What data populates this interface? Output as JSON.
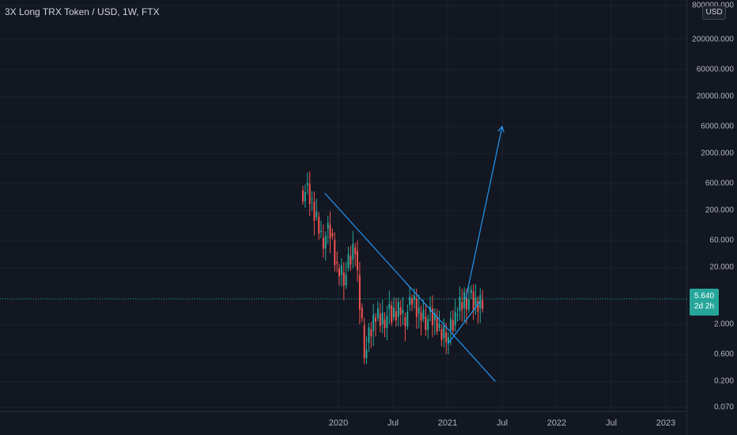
{
  "header": {
    "title": "3X Long TRX Token / USD, 1W, FTX"
  },
  "currency_button": "USD",
  "current_price": {
    "value": "5.640",
    "countdown": "2d 2h",
    "color": "#26a69a"
  },
  "colors": {
    "background": "#131722",
    "up": "#26a69a",
    "down": "#ef5350",
    "drawing": "#2196f3",
    "grid": "#1e222d"
  },
  "price_axis": {
    "labels": [
      "800000.000",
      "200000.000",
      "60000.000",
      "20000.000",
      "6000.000",
      "2000.000",
      "600.000",
      "200.000",
      "60.000",
      "20.000",
      "2.000",
      "0.600",
      "0.200",
      "0.070"
    ]
  },
  "time_axis": {
    "labels": [
      "2020",
      "Jul",
      "2021",
      "Jul",
      "2022",
      "Jul",
      "2023"
    ]
  },
  "chart_data": {
    "type": "candlestick",
    "log_scale": true,
    "grid": true,
    "x": [
      "2019-09",
      "2019-10",
      "2019-11",
      "2019-12",
      "2020-01",
      "2020-02",
      "2020-03",
      "2020-04",
      "2020-05",
      "2020-06",
      "2020-07",
      "2020-08",
      "2020-09",
      "2020-10",
      "2020-11",
      "2020-12",
      "2021-01",
      "2021-02",
      "2021-03",
      "2021-04"
    ],
    "close": [
      300,
      120,
      70,
      18,
      15,
      45,
      0.9,
      2.0,
      2.8,
      2.5,
      4.5,
      3.5,
      3.0,
      2.5,
      2.0,
      1.7,
      2.2,
      6.5,
      4.0,
      5.64
    ],
    "current_value": 5.64,
    "annotations": [
      {
        "type": "descending-trendline",
        "from": [
          "2019-08",
          600
        ],
        "to": [
          "2021-06",
          0.2
        ]
      },
      {
        "type": "projection-arrow",
        "from": [
          "2021-03",
          5.64
        ],
        "to": [
          "2021-07",
          6000
        ]
      }
    ]
  }
}
